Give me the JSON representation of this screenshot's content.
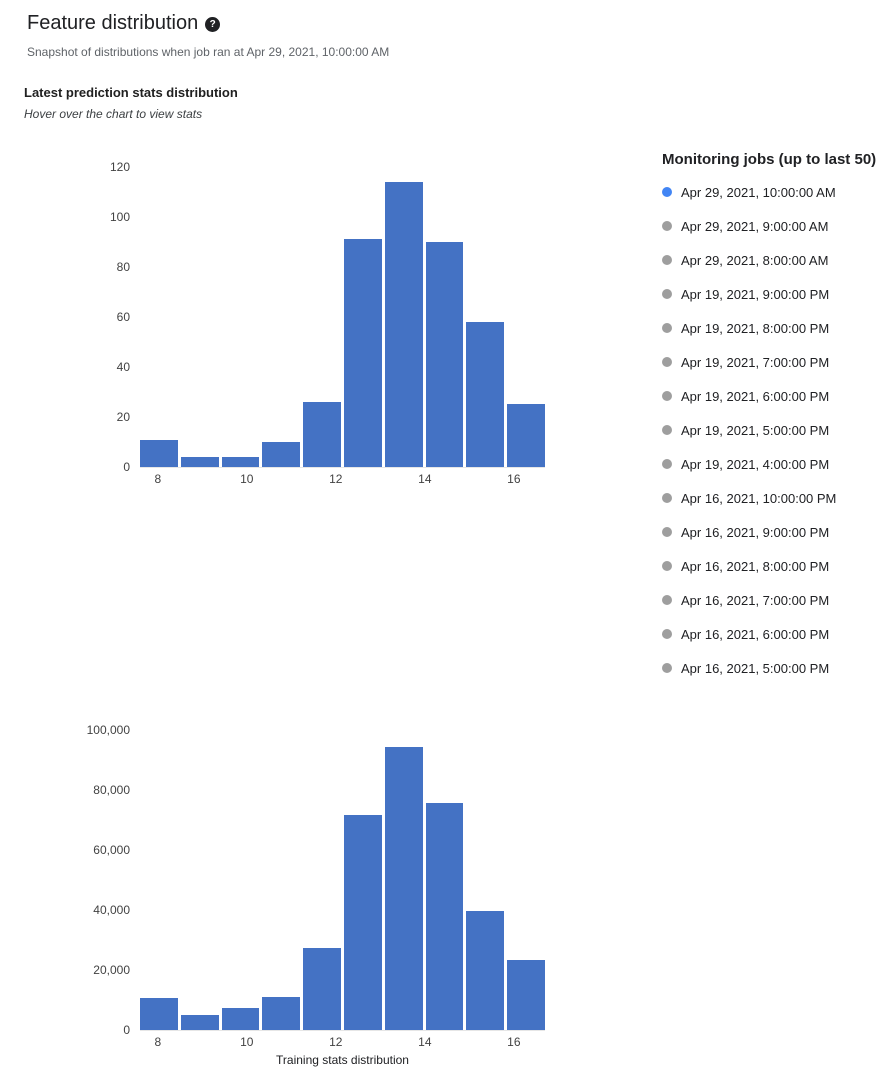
{
  "header": {
    "title": "Feature distribution",
    "help_glyph": "?",
    "subtitle": "Snapshot of distributions when job ran at Apr 29, 2021, 10:00:00 AM"
  },
  "section": {
    "title": "Latest prediction stats distribution",
    "hint": "Hover over the chart to view stats"
  },
  "monitoring_jobs": {
    "title": "Monitoring jobs (up to last 50)",
    "items": [
      {
        "label": "Apr 29, 2021, 10:00:00 AM",
        "selected": true
      },
      {
        "label": "Apr 29, 2021, 9:00:00 AM",
        "selected": false
      },
      {
        "label": "Apr 29, 2021, 8:00:00 AM",
        "selected": false
      },
      {
        "label": "Apr 19, 2021, 9:00:00 PM",
        "selected": false
      },
      {
        "label": "Apr 19, 2021, 8:00:00 PM",
        "selected": false
      },
      {
        "label": "Apr 19, 2021, 7:00:00 PM",
        "selected": false
      },
      {
        "label": "Apr 19, 2021, 6:00:00 PM",
        "selected": false
      },
      {
        "label": "Apr 19, 2021, 5:00:00 PM",
        "selected": false
      },
      {
        "label": "Apr 19, 2021, 4:00:00 PM",
        "selected": false
      },
      {
        "label": "Apr 16, 2021, 10:00:00 PM",
        "selected": false
      },
      {
        "label": "Apr 16, 2021, 9:00:00 PM",
        "selected": false
      },
      {
        "label": "Apr 16, 2021, 8:00:00 PM",
        "selected": false
      },
      {
        "label": "Apr 16, 2021, 7:00:00 PM",
        "selected": false
      },
      {
        "label": "Apr 16, 2021, 6:00:00 PM",
        "selected": false
      },
      {
        "label": "Apr 16, 2021, 5:00:00 PM",
        "selected": false
      }
    ]
  },
  "colors": {
    "bar": "#4472c4",
    "selected_dot": "#4285f4",
    "unselected_dot": "#9e9e9e",
    "text_primary": "#202124",
    "text_secondary": "#5f6368",
    "tick_label": "#424242"
  },
  "chart_data": [
    {
      "type": "bar",
      "title": "Latest prediction stats distribution",
      "xlabel": "",
      "ylabel": "",
      "xlim": [
        7.6,
        16.7
      ],
      "ylim": [
        0,
        120
      ],
      "grid": false,
      "legend_position": "right",
      "xticks": [
        8,
        10,
        12,
        14,
        16
      ],
      "yticks": [
        0,
        20,
        40,
        60,
        80,
        100,
        120
      ],
      "ytick_labels": [
        "0",
        "20",
        "40",
        "60",
        "80",
        "100",
        "120"
      ],
      "values": [
        11,
        4,
        4,
        10,
        26,
        91,
        114,
        90,
        58,
        25
      ]
    },
    {
      "type": "bar",
      "title": "Training stats distribution",
      "xlabel": "Training stats distribution",
      "ylabel": "",
      "xlim": [
        7.6,
        16.7
      ],
      "ylim": [
        0,
        100000
      ],
      "grid": false,
      "xticks": [
        8,
        10,
        12,
        14,
        16
      ],
      "yticks": [
        0,
        20000,
        40000,
        60000,
        80000,
        100000
      ],
      "ytick_labels": [
        "0",
        "20,000",
        "40,000",
        "60,000",
        "80,000",
        "100,000"
      ],
      "values": [
        10500,
        5000,
        7400,
        11000,
        27400,
        71600,
        94400,
        75600,
        39800,
        23400
      ]
    }
  ]
}
